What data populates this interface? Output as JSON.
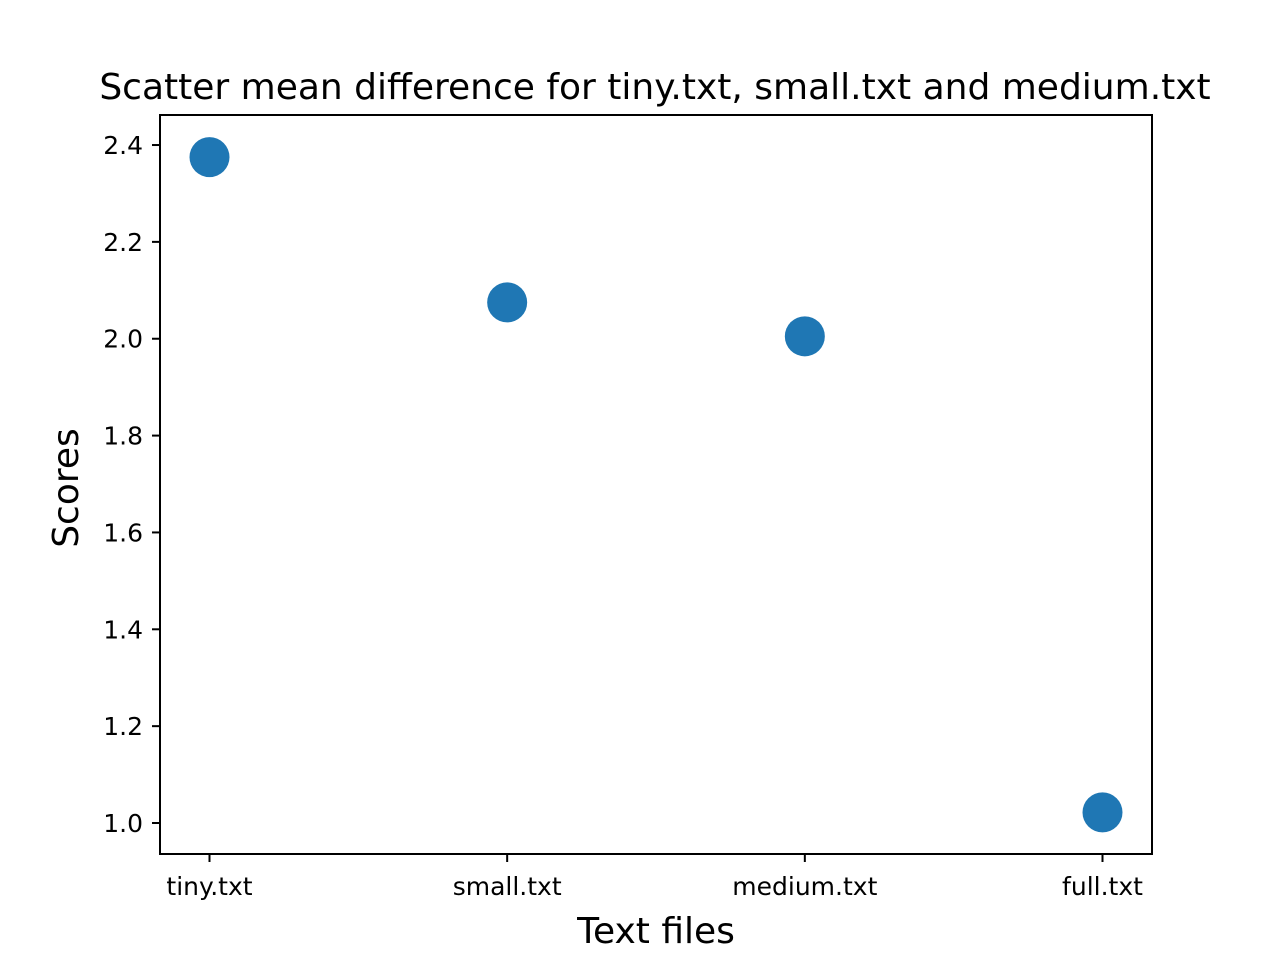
{
  "chart_data": {
    "type": "scatter",
    "title": "Scatter mean difference for tiny.txt, small.txt and medium.txt",
    "xlabel": "Text files",
    "ylabel": "Scores",
    "categories": [
      "tiny.txt",
      "small.txt",
      "medium.txt",
      "full.txt"
    ],
    "series": [
      {
        "values": [
          2.375,
          2.075,
          2.005,
          1.022
        ]
      }
    ],
    "ylim": [
      0.936,
      2.462
    ],
    "yticks": [
      1.0,
      1.2,
      1.4,
      1.6,
      1.8,
      2.0,
      2.2,
      2.4
    ],
    "ytick_labels": [
      "1.0",
      "1.2",
      "1.4",
      "1.6",
      "1.8",
      "2.0",
      "2.2",
      "2.4"
    ],
    "grid": false,
    "marker_color": "#1f77b4"
  }
}
